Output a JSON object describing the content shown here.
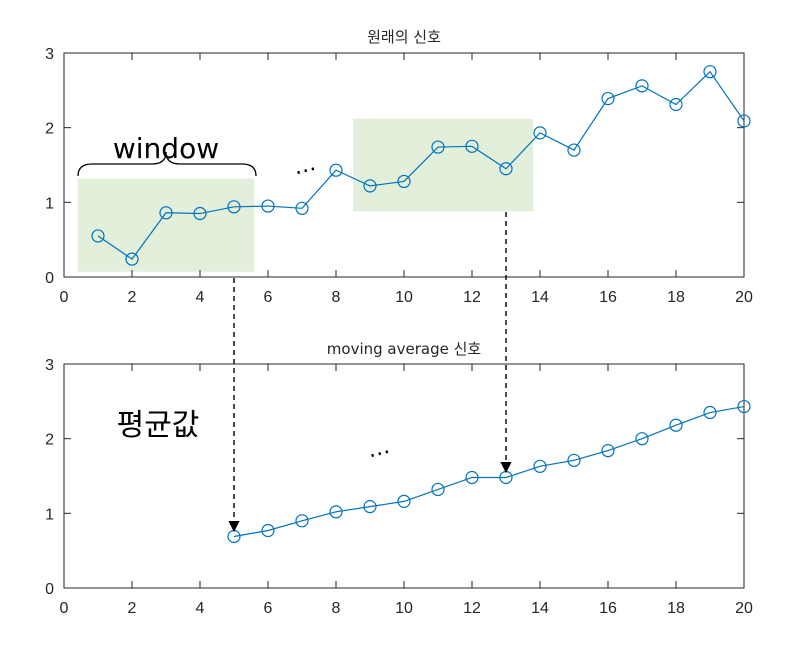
{
  "chart_data": [
    {
      "type": "line",
      "title": "원래의 신호",
      "xlim": [
        0,
        20
      ],
      "ylim": [
        0,
        3
      ],
      "x_ticks": [
        "0",
        "2",
        "4",
        "6",
        "8",
        "10",
        "12",
        "14",
        "16",
        "18",
        "20"
      ],
      "y_ticks": [
        "0",
        "1",
        "2",
        "3"
      ],
      "grid": false,
      "series": [
        {
          "x": [
            1,
            2,
            3,
            4,
            5,
            6,
            7,
            8,
            9,
            10,
            11,
            12,
            13,
            14,
            15,
            16,
            17,
            18,
            19,
            20
          ],
          "values": [
            0.55,
            0.24,
            0.86,
            0.85,
            0.94,
            0.95,
            0.92,
            1.43,
            1.22,
            1.28,
            1.74,
            1.75,
            1.45,
            1.93,
            1.7,
            2.39,
            2.56,
            2.31,
            2.75,
            2.09
          ],
          "color": "#0072BD"
        }
      ],
      "annotations": {
        "window_label": "window",
        "ellipsis": "…",
        "window_boxes": [
          {
            "x_range": [
              0.4,
              5.6
            ],
            "y_range": [
              0.07,
              1.32
            ]
          },
          {
            "x_range": [
              8.5,
              13.8
            ],
            "y_range": [
              0.88,
              2.12
            ]
          }
        ],
        "box_color": "#e2efda"
      }
    },
    {
      "type": "line",
      "title": "moving average 신호",
      "xlim": [
        0,
        20
      ],
      "ylim": [
        0,
        3
      ],
      "x_ticks": [
        "0",
        "2",
        "4",
        "6",
        "8",
        "10",
        "12",
        "14",
        "16",
        "18",
        "20"
      ],
      "y_ticks": [
        "0",
        "1",
        "2",
        "3"
      ],
      "grid": false,
      "series": [
        {
          "x": [
            5,
            6,
            7,
            8,
            9,
            10,
            11,
            12,
            13,
            14,
            15,
            16,
            17,
            18,
            19,
            20
          ],
          "values": [
            0.69,
            0.77,
            0.9,
            1.02,
            1.09,
            1.16,
            1.32,
            1.48,
            1.48,
            1.63,
            1.71,
            1.84,
            2.0,
            2.18,
            2.35,
            2.43
          ],
          "color": "#0072BD"
        }
      ],
      "annotations": {
        "mean_label": "평균값",
        "ellipsis": "…"
      }
    }
  ]
}
